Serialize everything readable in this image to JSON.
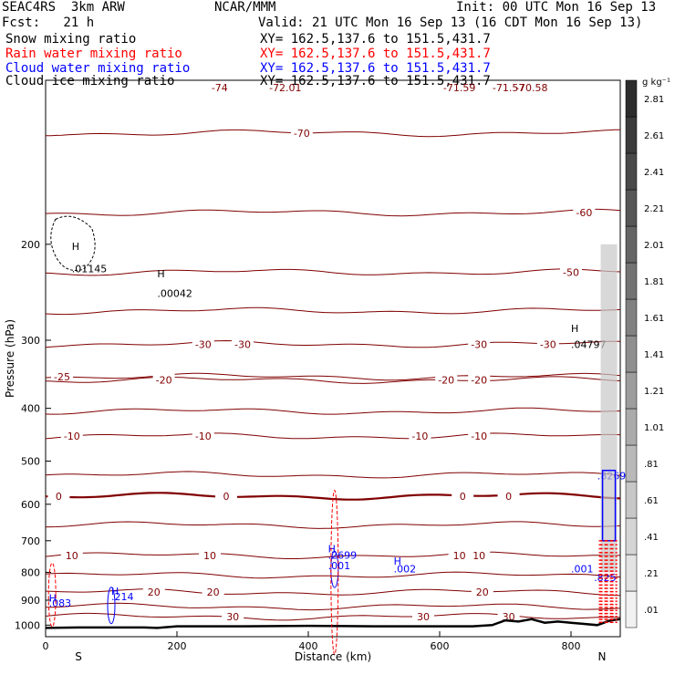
{
  "header": {
    "title_left": "SEAC4RS  3km ARW",
    "title_center": "NCAR/MMM",
    "init": "Init: 00 UTC Mon 16 Sep 13",
    "fcst": "Fcst:   21 h",
    "valid": "Valid: 21 UTC Mon 16 Sep 13 (16 CDT Mon 16 Sep 13)"
  },
  "fields": [
    {
      "name": "Snow mixing ratio",
      "xy": "XY= 162.5,137.6 to 151.5,431.7",
      "color": "#000000"
    },
    {
      "name": "Rain water mixing ratio",
      "xy": "XY= 162.5,137.6 to 151.5,431.7",
      "color": "#ff0000"
    },
    {
      "name": "Cloud water mixing ratio",
      "xy": "XY= 162.5,137.6 to 151.5,431.7",
      "color": "#0000ff"
    },
    {
      "name": "Cloud ice mixing ratio",
      "xy": "XY= 162.5,137.6 to 151.5,431.7",
      "color": "#000000"
    }
  ],
  "chart_data": {
    "type": "contour",
    "xlabel": "Distance (km)",
    "ylabel": "Pressure (hPa)",
    "xlim": [
      0,
      875
    ],
    "ylim": [
      1050,
      100
    ],
    "y_scale": "log",
    "x_ticks": [
      "0",
      "200",
      "400",
      "600",
      "800"
    ],
    "y_ticks": [
      "200",
      "300",
      "400",
      "500",
      "600",
      "700",
      "800",
      "900",
      "1000"
    ],
    "endpoint_labels": {
      "left": "S",
      "right": "N"
    },
    "colorbar": {
      "unit": "g kg⁻¹",
      "labels": [
        ".01",
        ".21",
        ".41",
        ".61",
        ".81",
        "1.01",
        "1.21",
        "1.41",
        "1.61",
        "1.81",
        "2.01",
        "2.21",
        "2.41",
        "2.61",
        "2.81"
      ]
    },
    "temperature_contours": {
      "units": "°C",
      "color": "#800000",
      "levels": [
        {
          "value": -70,
          "p": 125,
          "labels": [
            {
              "x": 390,
              "text": "-70"
            }
          ]
        },
        {
          "value": -60,
          "p": 175,
          "labels": [
            {
              "x": 820,
              "text": "-60"
            }
          ]
        },
        {
          "value": -50,
          "p": 225,
          "labels": [
            {
              "x": 800,
              "text": "-50"
            }
          ]
        },
        {
          "value": -40,
          "p": 265,
          "labels": []
        },
        {
          "value": -30,
          "p": 305,
          "labels": [
            {
              "x": 240,
              "text": "-30"
            },
            {
              "x": 300,
              "text": "-30"
            },
            {
              "x": 660,
              "text": "-30"
            },
            {
              "x": 765,
              "text": "-30"
            }
          ]
        },
        {
          "value": -25,
          "p": 350,
          "labels": [
            {
              "x": 25,
              "text": "-25"
            }
          ]
        },
        {
          "value": -20,
          "p": 355,
          "labels": [
            {
              "x": 180,
              "text": "-20"
            },
            {
              "x": 610,
              "text": "-20"
            },
            {
              "x": 660,
              "text": "-20"
            }
          ]
        },
        {
          "value": -15,
          "p": 405,
          "labels": []
        },
        {
          "value": -10,
          "p": 450,
          "labels": [
            {
              "x": 40,
              "text": "-10"
            },
            {
              "x": 240,
              "text": "-10"
            },
            {
              "x": 570,
              "text": "-10"
            },
            {
              "x": 660,
              "text": "-10"
            }
          ]
        },
        {
          "value": -5,
          "p": 530,
          "labels": []
        },
        {
          "value": 0,
          "p": 580,
          "labels": [
            {
              "x": 20,
              "text": "0"
            },
            {
              "x": 275,
              "text": "0"
            },
            {
              "x": 635,
              "text": "0"
            },
            {
              "x": 705,
              "text": "0"
            }
          ],
          "bold": true
        },
        {
          "value": 5,
          "p": 655,
          "labels": []
        },
        {
          "value": 10,
          "p": 745,
          "labels": [
            {
              "x": 40,
              "text": "10"
            },
            {
              "x": 250,
              "text": "10"
            },
            {
              "x": 630,
              "text": "10"
            },
            {
              "x": 660,
              "text": "10"
            }
          ]
        },
        {
          "value": 15,
          "p": 810,
          "labels": []
        },
        {
          "value": 20,
          "p": 870,
          "labels": [
            {
              "x": 165,
              "text": "20"
            },
            {
              "x": 255,
              "text": "20"
            },
            {
              "x": 665,
              "text": "20"
            }
          ]
        },
        {
          "value": 25,
          "p": 925,
          "labels": []
        },
        {
          "value": 30,
          "p": 965,
          "labels": [
            {
              "x": 285,
              "text": "30"
            },
            {
              "x": 575,
              "text": "30"
            },
            {
              "x": 705,
              "text": "30"
            }
          ]
        }
      ]
    },
    "extrema_labels": [
      {
        "x": 40,
        "p": 205,
        "text": "H",
        "color": "#000000"
      },
      {
        "x": 40,
        "p": 225,
        "text": ".01145",
        "color": "#000000"
      },
      {
        "x": 170,
        "p": 230,
        "text": "H",
        "color": "#000000"
      },
      {
        "x": 170,
        "p": 250,
        "text": ".00042",
        "color": "#000000"
      },
      {
        "x": 800,
        "p": 290,
        "text": "H",
        "color": "#000000"
      },
      {
        "x": 800,
        "p": 310,
        "text": ".04797",
        "color": "#000000"
      },
      {
        "x": 530,
        "p": 775,
        "text": "H",
        "color": "#0000ff"
      },
      {
        "x": 530,
        "p": 800,
        "text": ".002",
        "color": "#0000ff"
      },
      {
        "x": 430,
        "p": 735,
        "text": "H",
        "color": "#0000ff"
      },
      {
        "x": 430,
        "p": 755,
        "text": ".2699",
        "color": "#0000ff"
      },
      {
        "x": 430,
        "p": 790,
        "text": ".001",
        "color": "#0000ff"
      },
      {
        "x": 100,
        "p": 880,
        "text": "H",
        "color": "#0000ff"
      },
      {
        "x": 100,
        "p": 900,
        "text": ".214",
        "color": "#0000ff"
      },
      {
        "x": 5,
        "p": 905,
        "text": "H",
        "color": "#0000ff"
      },
      {
        "x": 5,
        "p": 925,
        "text": ".083",
        "color": "#0000ff"
      },
      {
        "x": 800,
        "p": 800,
        "text": ".001",
        "color": "#0000ff"
      },
      {
        "x": 840,
        "p": 540,
        "text": ".8269",
        "color": "#0000ff"
      },
      {
        "x": 835,
        "p": 830,
        "text": ".825",
        "color": "#0000ff"
      }
    ],
    "top_labels": [
      {
        "x": 365,
        "text": "-72.01"
      },
      {
        "x": 630,
        "text": "-71.59"
      },
      {
        "x": 265,
        "text": "-74"
      },
      {
        "x": 740,
        "text": "-70.58"
      },
      {
        "x": 705,
        "text": "-71.57"
      }
    ],
    "terrain": {
      "x": [
        0,
        50,
        100,
        150,
        170,
        200,
        300,
        400,
        500,
        600,
        650,
        680,
        700,
        720,
        740,
        760,
        780,
        800,
        820,
        840,
        860,
        875
      ],
      "p": [
        1012,
        1010,
        1010,
        1010,
        1012,
        1005,
        1005,
        1003,
        1005,
        1005,
        1005,
        1000,
        980,
        985,
        975,
        990,
        985,
        990,
        995,
        1000,
        980,
        975
      ]
    }
  }
}
